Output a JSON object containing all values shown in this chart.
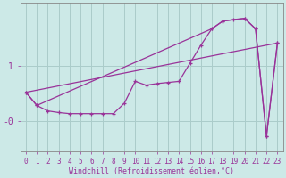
{
  "xlabel": "Windchill (Refroidissement éolien,°C)",
  "bg_color": "#cce9e7",
  "grid_color": "#aaccca",
  "line_color": "#993399",
  "xlim_min": -0.5,
  "xlim_max": 23.5,
  "ylim_min": -0.55,
  "ylim_max": 2.15,
  "ytick_pos": [
    1.0,
    0.0
  ],
  "ytick_labels": [
    "1",
    "-0"
  ],
  "xtick_labels": [
    "0",
    "1",
    "2",
    "3",
    "4",
    "5",
    "6",
    "7",
    "8",
    "9",
    "10",
    "11",
    "12",
    "13",
    "14",
    "15",
    "16",
    "17",
    "18",
    "19",
    "20",
    "21",
    "22",
    "23"
  ],
  "series1_x": [
    0,
    1,
    2,
    3,
    4,
    5,
    6,
    7,
    8,
    9,
    10,
    11,
    12,
    13,
    14,
    15,
    16,
    17,
    18,
    19,
    20,
    21,
    22,
    23
  ],
  "series1_y": [
    0.52,
    0.28,
    0.18,
    0.15,
    0.13,
    0.13,
    0.13,
    0.13,
    0.13,
    0.32,
    0.72,
    0.65,
    0.68,
    0.7,
    0.72,
    1.05,
    1.38,
    1.68,
    1.82,
    1.85,
    1.87,
    1.68,
    -0.28,
    1.42
  ],
  "series2_x": [
    0,
    23
  ],
  "series2_y": [
    0.52,
    1.42
  ],
  "series3_x": [
    0,
    1,
    17,
    18,
    20,
    21,
    22,
    23
  ],
  "series3_y": [
    0.52,
    0.28,
    1.68,
    1.82,
    1.87,
    1.68,
    -0.28,
    1.42
  ],
  "font_color": "#993399",
  "font_size_x": 5.5,
  "font_size_y": 7.0,
  "font_size_label": 6.0,
  "lw": 0.9,
  "ms": 3.0
}
